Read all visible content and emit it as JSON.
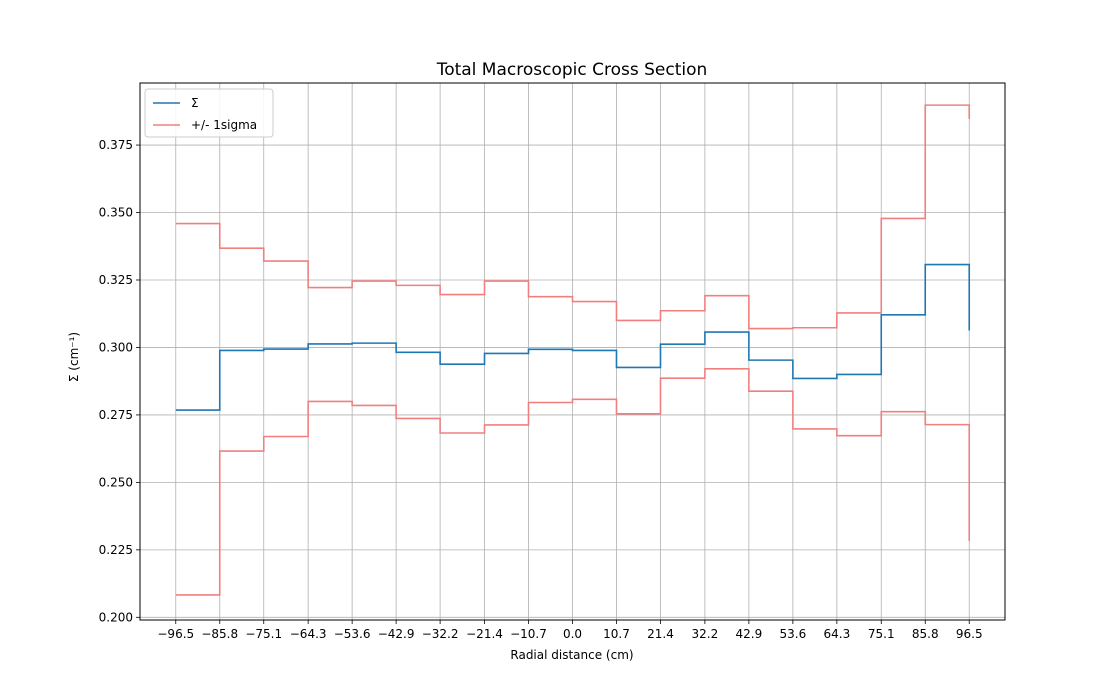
{
  "chart_data": {
    "type": "line",
    "step": "post",
    "title": "Total Macroscopic Cross Section",
    "xlabel": "Radial distance (cm)",
    "ylabel": "Σ (cm⁻¹)",
    "ylim": [
      0.199,
      0.398
    ],
    "xlim": [
      -105.2,
      105.2
    ],
    "grid": true,
    "legend_position": "upper left",
    "x_ticks": [
      -96.5,
      -85.8,
      -75.1,
      -64.3,
      -53.6,
      -42.9,
      -32.2,
      -21.4,
      -10.7,
      0.0,
      10.7,
      21.4,
      32.2,
      42.9,
      53.6,
      64.3,
      75.1,
      85.8,
      96.5
    ],
    "x_tick_labels": [
      "−96.5",
      "−85.8",
      "−75.1",
      "−64.3",
      "−53.6",
      "−42.9",
      "−32.2",
      "−21.4",
      "−10.7",
      "0.0",
      "10.7",
      "21.4",
      "32.2",
      "42.9",
      "53.6",
      "64.3",
      "75.1",
      "85.8",
      "96.5"
    ],
    "y_ticks": [
      0.2,
      0.225,
      0.25,
      0.275,
      0.3,
      0.325,
      0.35,
      0.375
    ],
    "y_tick_labels": [
      "0.200",
      "0.225",
      "0.250",
      "0.275",
      "0.300",
      "0.325",
      "0.350",
      "0.375"
    ],
    "x": [
      -96.5,
      -85.8,
      -75.1,
      -64.3,
      -53.6,
      -42.9,
      -32.2,
      -21.4,
      -10.7,
      0.0,
      10.7,
      21.4,
      32.2,
      42.9,
      53.6,
      64.3,
      75.1,
      85.8,
      96.5
    ],
    "series": [
      {
        "name": "Σ",
        "color": "#1f77b4",
        "values": [
          0.2768,
          0.2989,
          0.2994,
          0.3013,
          0.3016,
          0.2982,
          0.2938,
          0.2978,
          0.2993,
          0.2989,
          0.2926,
          0.3012,
          0.3057,
          0.2953,
          0.2885,
          0.29,
          0.3121,
          0.3307,
          0.3063
        ]
      },
      {
        "name": "+/- 1sigma",
        "color": "#f08080",
        "values": [
          0.3459,
          0.3368,
          0.332,
          0.3222,
          0.3246,
          0.323,
          0.3196,
          0.3246,
          0.3188,
          0.317,
          0.31,
          0.3136,
          0.3192,
          0.307,
          0.3073,
          0.3128,
          0.3478,
          0.3898,
          0.3847
        ]
      },
      {
        "name": "",
        "color": "#f08080",
        "values": [
          0.2083,
          0.2616,
          0.267,
          0.28,
          0.2785,
          0.2737,
          0.2683,
          0.2713,
          0.2796,
          0.2808,
          0.2754,
          0.2886,
          0.2921,
          0.2838,
          0.2698,
          0.2673,
          0.2762,
          0.2714,
          0.2283
        ]
      }
    ]
  }
}
